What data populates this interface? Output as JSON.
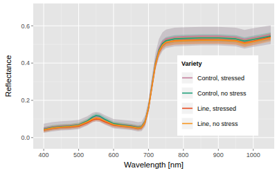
{
  "chart_data": {
    "type": "line",
    "x_label": "Wavelength [nm]",
    "y_label": "Reflectance",
    "legend_title": "Variety",
    "legend": "right",
    "grid": true,
    "xlim": [
      370,
      1060
    ],
    "xticks": [
      400,
      500,
      600,
      700,
      800,
      900,
      1000
    ],
    "ylim": [
      -0.06,
      0.72
    ],
    "yticks": [
      {
        "value": 0,
        "label": "0.0"
      },
      0.2,
      0.4,
      0.6
    ],
    "x": [
      400,
      425,
      450,
      475,
      500,
      525,
      540,
      550,
      560,
      575,
      600,
      625,
      650,
      670,
      680,
      690,
      700,
      710,
      720,
      730,
      740,
      750,
      775,
      800,
      850,
      900,
      950,
      975,
      1000,
      1050
    ],
    "series": [
      {
        "name": "Control, stressed",
        "color": "#c47d9b",
        "values": [
          0.05,
          0.058,
          0.063,
          0.065,
          0.07,
          0.09,
          0.108,
          0.113,
          0.11,
          0.095,
          0.075,
          0.07,
          0.065,
          0.058,
          0.06,
          0.088,
          0.165,
          0.29,
          0.41,
          0.48,
          0.515,
          0.53,
          0.54,
          0.542,
          0.545,
          0.545,
          0.54,
          0.528,
          0.537,
          0.552
        ],
        "upper": [
          0.075,
          0.083,
          0.088,
          0.09,
          0.095,
          0.115,
          0.133,
          0.138,
          0.135,
          0.12,
          0.1,
          0.095,
          0.09,
          0.083,
          0.085,
          0.118,
          0.2,
          0.33,
          0.455,
          0.53,
          0.565,
          0.58,
          0.59,
          0.592,
          0.595,
          0.595,
          0.59,
          0.578,
          0.587,
          0.602
        ],
        "lower": [
          0.025,
          0.033,
          0.038,
          0.04,
          0.045,
          0.065,
          0.083,
          0.088,
          0.085,
          0.07,
          0.05,
          0.045,
          0.04,
          0.033,
          0.035,
          0.058,
          0.13,
          0.25,
          0.365,
          0.43,
          0.465,
          0.48,
          0.49,
          0.492,
          0.495,
          0.495,
          0.49,
          0.478,
          0.487,
          0.502
        ]
      },
      {
        "name": "Control, no stress",
        "color": "#1b9e77",
        "values": [
          0.045,
          0.055,
          0.06,
          0.062,
          0.068,
          0.09,
          0.11,
          0.118,
          0.115,
          0.098,
          0.075,
          0.068,
          0.062,
          0.055,
          0.058,
          0.085,
          0.16,
          0.28,
          0.4,
          0.47,
          0.505,
          0.52,
          0.53,
          0.532,
          0.535,
          0.535,
          0.53,
          0.518,
          0.527,
          0.545
        ],
        "upper": [
          0.057,
          0.067,
          0.072,
          0.074,
          0.08,
          0.102,
          0.122,
          0.13,
          0.127,
          0.11,
          0.087,
          0.08,
          0.074,
          0.067,
          0.07,
          0.1,
          0.178,
          0.3,
          0.42,
          0.49,
          0.525,
          0.54,
          0.55,
          0.552,
          0.555,
          0.555,
          0.55,
          0.538,
          0.547,
          0.565
        ],
        "lower": [
          0.033,
          0.043,
          0.048,
          0.05,
          0.056,
          0.078,
          0.098,
          0.106,
          0.103,
          0.086,
          0.063,
          0.056,
          0.05,
          0.043,
          0.046,
          0.07,
          0.142,
          0.26,
          0.38,
          0.45,
          0.485,
          0.5,
          0.51,
          0.512,
          0.515,
          0.515,
          0.51,
          0.498,
          0.507,
          0.525
        ]
      },
      {
        "name": "Line, stressed",
        "color": "#e8491d",
        "values": [
          0.04,
          0.05,
          0.055,
          0.057,
          0.062,
          0.08,
          0.095,
          0.1,
          0.098,
          0.085,
          0.067,
          0.062,
          0.057,
          0.05,
          0.053,
          0.08,
          0.155,
          0.275,
          0.39,
          0.46,
          0.495,
          0.51,
          0.52,
          0.522,
          0.525,
          0.525,
          0.52,
          0.508,
          0.517,
          0.54
        ],
        "upper": [
          0.052,
          0.062,
          0.067,
          0.069,
          0.074,
          0.092,
          0.107,
          0.112,
          0.11,
          0.097,
          0.079,
          0.074,
          0.069,
          0.062,
          0.065,
          0.095,
          0.173,
          0.295,
          0.41,
          0.48,
          0.515,
          0.53,
          0.54,
          0.542,
          0.545,
          0.545,
          0.54,
          0.528,
          0.537,
          0.56
        ],
        "lower": [
          0.028,
          0.038,
          0.043,
          0.045,
          0.05,
          0.068,
          0.083,
          0.088,
          0.086,
          0.073,
          0.055,
          0.05,
          0.045,
          0.038,
          0.041,
          0.065,
          0.137,
          0.255,
          0.37,
          0.44,
          0.475,
          0.49,
          0.5,
          0.502,
          0.505,
          0.505,
          0.5,
          0.488,
          0.497,
          0.52
        ]
      },
      {
        "name": "Line, no stress",
        "color": "#f7941d",
        "values": [
          0.042,
          0.052,
          0.057,
          0.06,
          0.065,
          0.085,
          0.1,
          0.105,
          0.102,
          0.09,
          0.07,
          0.064,
          0.059,
          0.052,
          0.055,
          0.082,
          0.158,
          0.278,
          0.395,
          0.463,
          0.497,
          0.512,
          0.518,
          0.52,
          0.522,
          0.523,
          0.518,
          0.505,
          0.515,
          0.535
        ],
        "upper": [
          0.054,
          0.064,
          0.069,
          0.072,
          0.077,
          0.097,
          0.112,
          0.117,
          0.114,
          0.102,
          0.082,
          0.076,
          0.071,
          0.064,
          0.067,
          0.097,
          0.176,
          0.298,
          0.415,
          0.483,
          0.517,
          0.532,
          0.538,
          0.54,
          0.542,
          0.543,
          0.538,
          0.525,
          0.535,
          0.555
        ],
        "lower": [
          0.03,
          0.04,
          0.045,
          0.048,
          0.053,
          0.073,
          0.088,
          0.093,
          0.09,
          0.078,
          0.058,
          0.052,
          0.047,
          0.04,
          0.043,
          0.067,
          0.14,
          0.258,
          0.375,
          0.443,
          0.477,
          0.492,
          0.498,
          0.5,
          0.502,
          0.503,
          0.498,
          0.485,
          0.495,
          0.515
        ]
      }
    ]
  }
}
